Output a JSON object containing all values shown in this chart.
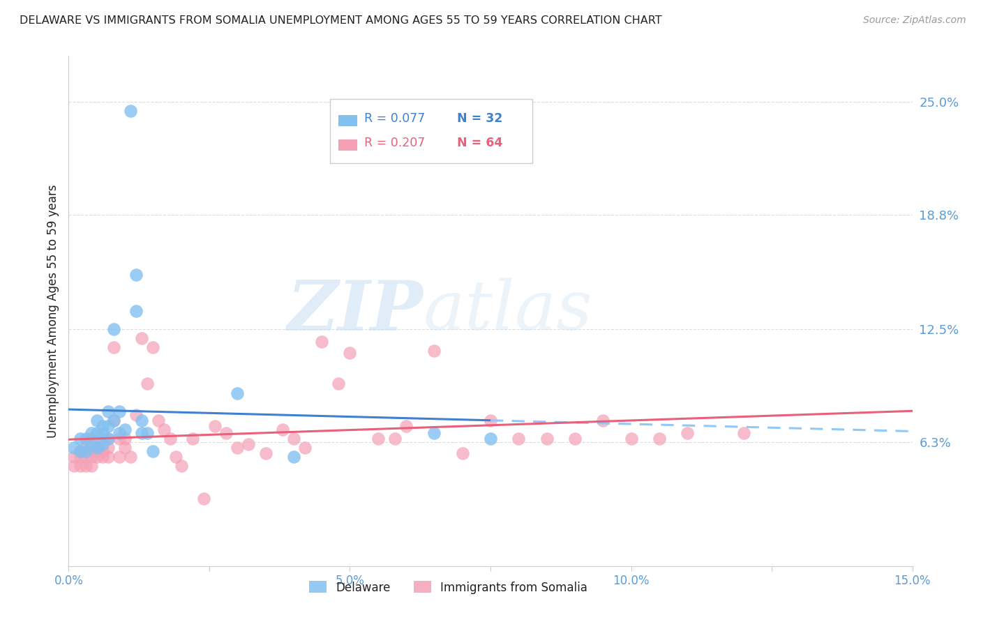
{
  "title": "DELAWARE VS IMMIGRANTS FROM SOMALIA UNEMPLOYMENT AMONG AGES 55 TO 59 YEARS CORRELATION CHART",
  "source": "Source: ZipAtlas.com",
  "ylabel": "Unemployment Among Ages 55 to 59 years",
  "xlim": [
    0.0,
    0.15
  ],
  "ylim": [
    -0.005,
    0.275
  ],
  "xticks": [
    0.0,
    0.025,
    0.05,
    0.075,
    0.1,
    0.125,
    0.15
  ],
  "xtick_labels": [
    "0.0%",
    "",
    "5.0%",
    "",
    "10.0%",
    "",
    "15.0%"
  ],
  "ytick_labels_right": [
    "6.3%",
    "12.5%",
    "18.8%",
    "25.0%"
  ],
  "ytick_vals_right": [
    0.063,
    0.125,
    0.188,
    0.25
  ],
  "gridline_y": [
    0.063,
    0.125,
    0.188,
    0.25
  ],
  "delaware_color": "#82C0F0",
  "somalia_color": "#F5A0B5",
  "trend_delaware_solid_color": "#4080D0",
  "trend_delaware_dashed_color": "#90C8F8",
  "trend_somalia_color": "#E8607A",
  "legend_r_delaware": "R = 0.077",
  "legend_n_delaware": "N = 32",
  "legend_r_somalia": "R = 0.207",
  "legend_n_somalia": "N = 64",
  "watermark_zip": "ZIP",
  "watermark_atlas": "atlas",
  "delaware_x": [
    0.001,
    0.002,
    0.002,
    0.003,
    0.003,
    0.004,
    0.004,
    0.005,
    0.005,
    0.005,
    0.006,
    0.006,
    0.006,
    0.007,
    0.007,
    0.007,
    0.008,
    0.008,
    0.009,
    0.009,
    0.01,
    0.011,
    0.012,
    0.012,
    0.013,
    0.013,
    0.014,
    0.015,
    0.03,
    0.04,
    0.065,
    0.075
  ],
  "delaware_y": [
    0.06,
    0.058,
    0.065,
    0.058,
    0.065,
    0.062,
    0.068,
    0.06,
    0.068,
    0.075,
    0.062,
    0.068,
    0.072,
    0.065,
    0.072,
    0.08,
    0.075,
    0.125,
    0.068,
    0.08,
    0.07,
    0.245,
    0.155,
    0.135,
    0.075,
    0.068,
    0.068,
    0.058,
    0.09,
    0.055,
    0.068,
    0.065
  ],
  "somalia_x": [
    0.001,
    0.001,
    0.002,
    0.002,
    0.002,
    0.003,
    0.003,
    0.003,
    0.004,
    0.004,
    0.004,
    0.004,
    0.005,
    0.005,
    0.005,
    0.006,
    0.006,
    0.006,
    0.007,
    0.007,
    0.007,
    0.008,
    0.008,
    0.009,
    0.009,
    0.01,
    0.01,
    0.011,
    0.012,
    0.013,
    0.014,
    0.015,
    0.016,
    0.017,
    0.018,
    0.019,
    0.02,
    0.022,
    0.024,
    0.026,
    0.028,
    0.03,
    0.032,
    0.035,
    0.038,
    0.04,
    0.042,
    0.045,
    0.048,
    0.05,
    0.055,
    0.058,
    0.06,
    0.065,
    0.07,
    0.075,
    0.08,
    0.085,
    0.09,
    0.095,
    0.1,
    0.105,
    0.11,
    0.12
  ],
  "somalia_y": [
    0.055,
    0.05,
    0.055,
    0.058,
    0.05,
    0.055,
    0.06,
    0.05,
    0.055,
    0.065,
    0.06,
    0.05,
    0.058,
    0.055,
    0.06,
    0.065,
    0.058,
    0.055,
    0.06,
    0.065,
    0.055,
    0.075,
    0.115,
    0.065,
    0.055,
    0.065,
    0.06,
    0.055,
    0.078,
    0.12,
    0.095,
    0.115,
    0.075,
    0.07,
    0.065,
    0.055,
    0.05,
    0.065,
    0.032,
    0.072,
    0.068,
    0.06,
    0.062,
    0.057,
    0.07,
    0.065,
    0.06,
    0.118,
    0.095,
    0.112,
    0.065,
    0.065,
    0.072,
    0.113,
    0.057,
    0.075,
    0.065,
    0.065,
    0.065,
    0.075,
    0.065,
    0.065,
    0.068,
    0.068
  ],
  "background_color": "#FFFFFF",
  "axis_color": "#CCCCCC",
  "grid_color": "#DDDDDD",
  "title_color": "#222222",
  "right_label_color": "#5B9BD5",
  "xtick_color": "#5B9BD5",
  "source_color": "#999999",
  "trend_solid_end_x": 0.075,
  "trend_dashed_start_x": 0.075
}
